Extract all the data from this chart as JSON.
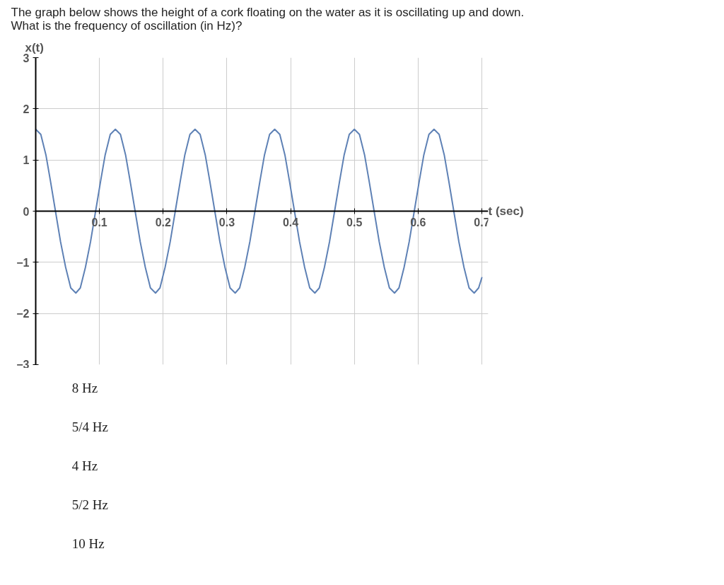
{
  "chart_data": {
    "type": "line",
    "title": "The graph below shows the height of a cork floating on the water as it is oscillating up and down. What is the frequency of oscillation (in Hz)?",
    "xlabel": "t (sec)",
    "ylabel": "x(t)",
    "annotations": [
      "8 Hz",
      "5/4 Hz",
      "4 Hz",
      "5/2 Hz",
      "10 Hz"
    ],
    "x": [
      0.0,
      0.008,
      0.016,
      0.023,
      0.031,
      0.039,
      0.047,
      0.055,
      0.063,
      0.07,
      0.078,
      0.086,
      0.094,
      0.102,
      0.109,
      0.117,
      0.125,
      0.133,
      0.141,
      0.148,
      0.156,
      0.164,
      0.172,
      0.18,
      0.188,
      0.195,
      0.203,
      0.211,
      0.219,
      0.227,
      0.234,
      0.242,
      0.25,
      0.258,
      0.266,
      0.273,
      0.281,
      0.289,
      0.297,
      0.305,
      0.313,
      0.32,
      0.328,
      0.336,
      0.344,
      0.352,
      0.359,
      0.367,
      0.375,
      0.383,
      0.391,
      0.398,
      0.406,
      0.414,
      0.422,
      0.43,
      0.438,
      0.445,
      0.453,
      0.461,
      0.469,
      0.477,
      0.484,
      0.492,
      0.5,
      0.508,
      0.516,
      0.523,
      0.531,
      0.539,
      0.547,
      0.555,
      0.563,
      0.57,
      0.578,
      0.586,
      0.594,
      0.602,
      0.609,
      0.617,
      0.625,
      0.633,
      0.641,
      0.648,
      0.656,
      0.664,
      0.672,
      0.68,
      0.688,
      0.695,
      0.7
    ],
    "series": [
      {
        "color": "#5e81b5",
        "values": [
          1.6,
          1.5,
          1.1,
          0.6,
          0,
          -0.6,
          -1.1,
          -1.5,
          -1.6,
          -1.5,
          -1.1,
          -0.6,
          0,
          0.6,
          1.1,
          1.5,
          1.6,
          1.5,
          1.1,
          0.6,
          0,
          -0.6,
          -1.1,
          -1.5,
          -1.6,
          -1.5,
          -1.1,
          -0.6,
          0,
          0.6,
          1.1,
          1.5,
          1.6,
          1.5,
          1.1,
          0.6,
          0,
          -0.6,
          -1.1,
          -1.5,
          -1.6,
          -1.5,
          -1.1,
          -0.6,
          0,
          0.6,
          1.1,
          1.5,
          1.6,
          1.5,
          1.1,
          0.6,
          0,
          -0.6,
          -1.1,
          -1.5,
          -1.6,
          -1.5,
          -1.1,
          -0.6,
          0,
          0.6,
          1.1,
          1.5,
          1.6,
          1.5,
          1.1,
          0.6,
          0,
          -0.6,
          -1.1,
          -1.5,
          -1.6,
          -1.5,
          -1.1,
          -0.6,
          0,
          0.6,
          1.1,
          1.5,
          1.6,
          1.5,
          1.1,
          0.6,
          0,
          -0.6,
          -1.1,
          -1.5,
          -1.6,
          -1.5,
          -1.3
        ]
      }
    ],
    "xlim": [
      0,
      0.71
    ],
    "ylim": [
      -3,
      3
    ],
    "xticks": [
      0.1,
      0.2,
      0.3,
      0.4,
      0.5,
      0.6,
      0.7
    ],
    "yticks": [
      -3,
      -2,
      -1,
      0,
      1,
      2,
      3
    ],
    "grid": true
  }
}
